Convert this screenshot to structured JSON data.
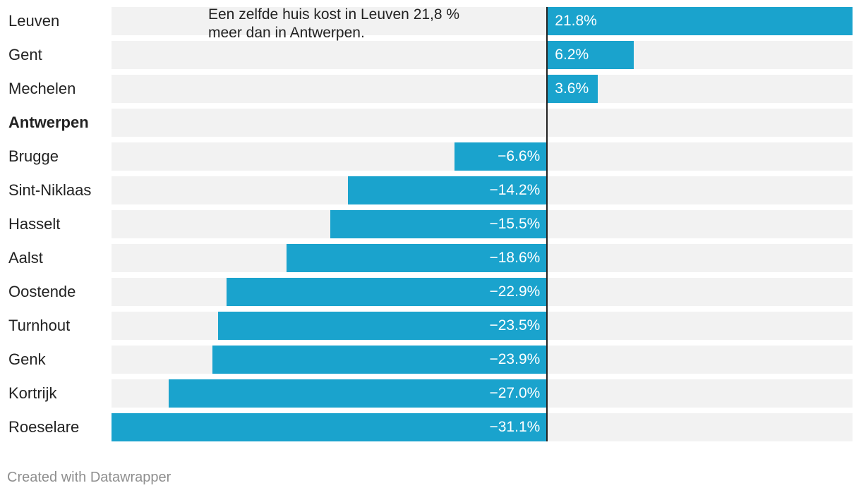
{
  "chart_data": {
    "type": "bar",
    "orientation": "horizontal",
    "categories": [
      "Leuven",
      "Gent",
      "Mechelen",
      "Antwerpen",
      "Brugge",
      "Sint-Niklaas",
      "Hasselt",
      "Aalst",
      "Oostende",
      "Turnhout",
      "Genk",
      "Kortrijk",
      "Roeselare"
    ],
    "values": [
      21.8,
      6.2,
      3.6,
      0,
      -6.6,
      -14.2,
      -15.5,
      -18.6,
      -22.9,
      -23.5,
      -23.9,
      -27.0,
      -31.1
    ],
    "value_labels": [
      "21.8%",
      "6.2%",
      "3.6%",
      "",
      "−6.6%",
      "−14.2%",
      "−15.5%",
      "−18.6%",
      "−22.9%",
      "−23.5%",
      "−23.9%",
      "−27.0%",
      "−31.1%"
    ],
    "highlight_category": "Antwerpen",
    "xlim": [
      -31.1,
      21.8
    ],
    "annotation": [
      "Een zelfde huis kost in Leuven 21,8 %",
      "meer dan in Antwerpen."
    ],
    "colors": {
      "bar": "#1aa3cd",
      "row_background": "#f2f2f2",
      "baseline": "#222222",
      "value_text": "#ffffff"
    },
    "grid": false,
    "legend": "none"
  },
  "footer": {
    "credit": "Created with Datawrapper"
  }
}
